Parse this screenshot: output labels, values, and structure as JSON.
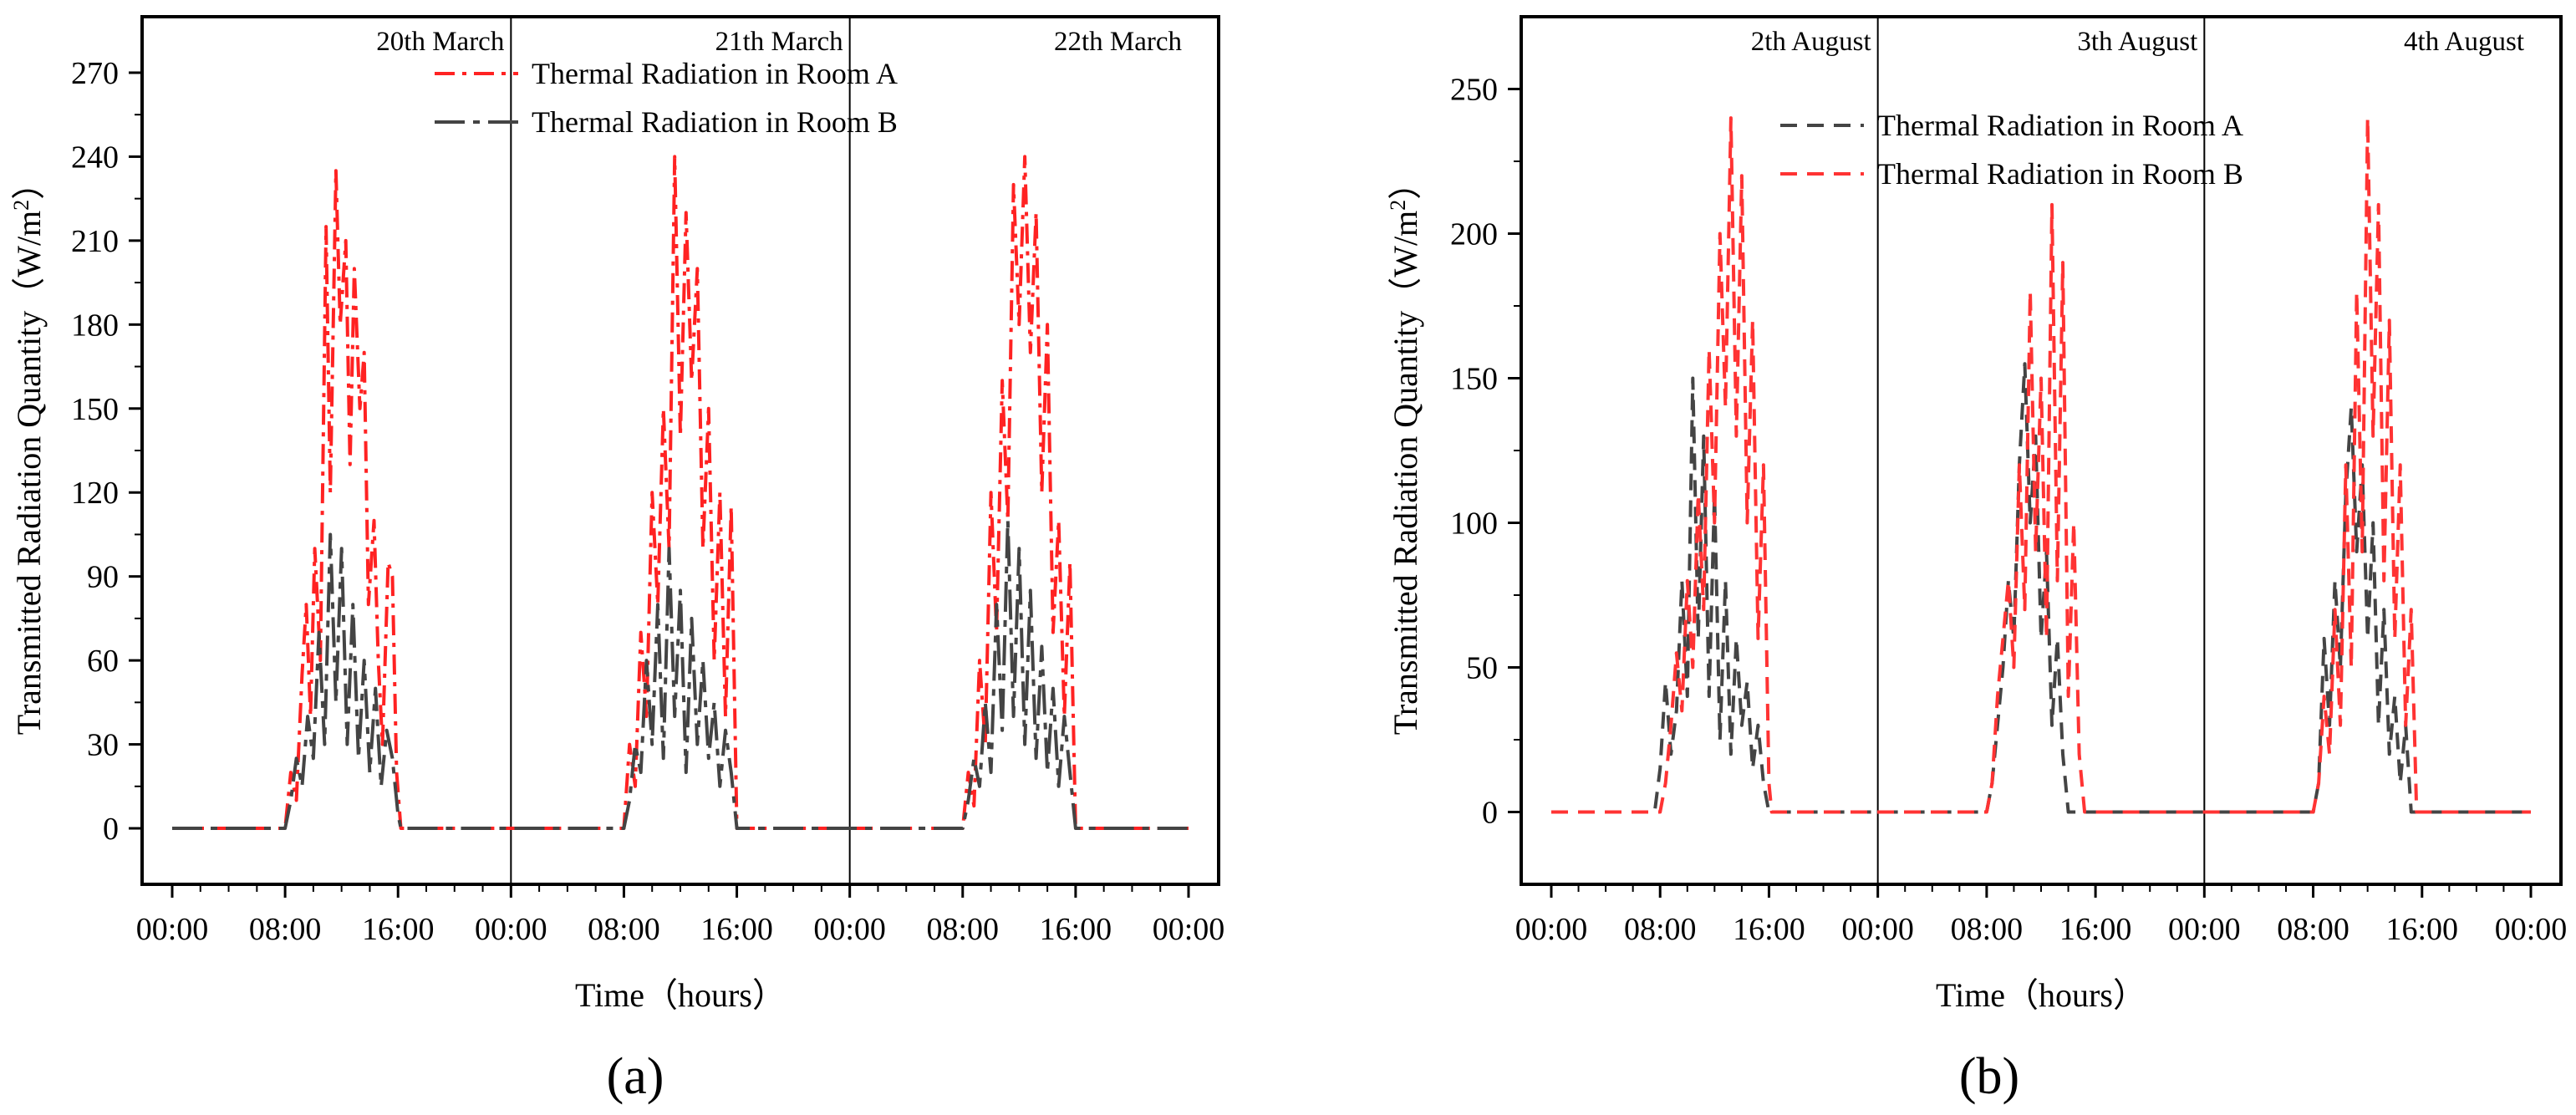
{
  "chart_data": [
    {
      "type": "line",
      "panel_label": "(a)",
      "xlabel": "Time（hours）",
      "ylabel": "Transmitted Radiation Quantity（W/m²）",
      "ylabel_main": "Transmitted Radiation Quantity（W/m",
      "ylabel_sup": "2",
      "ylabel_tail": "）",
      "xlim": [
        0,
        72
      ],
      "ylim": [
        -20,
        290
      ],
      "yticks": [
        0,
        30,
        60,
        90,
        120,
        150,
        180,
        210,
        240,
        270
      ],
      "xticks": [
        0,
        8,
        16,
        24,
        32,
        40,
        48,
        56,
        64,
        72
      ],
      "xtick_labels": [
        "00:00",
        "08:00",
        "16:00",
        "00:00",
        "08:00",
        "16:00",
        "00:00",
        "08:00",
        "16:00",
        "00:00"
      ],
      "day_separators": [
        24,
        48
      ],
      "days": [
        {
          "label": "20th March",
          "x_end": 24
        },
        {
          "label": "21th March",
          "x_end": 48
        },
        {
          "label": "22th March",
          "x_end": 72
        }
      ],
      "legend_position": "top-center",
      "series": [
        {
          "name": "Thermal Radiation in Room A",
          "color": "#ff2222",
          "dash": "24,9,5,9",
          "points": [
            [
              0,
              0
            ],
            [
              8,
              0
            ],
            [
              8.4,
              20
            ],
            [
              8.8,
              10
            ],
            [
              9.2,
              55
            ],
            [
              9.5,
              80
            ],
            [
              9.8,
              40
            ],
            [
              10.1,
              100
            ],
            [
              10.5,
              60
            ],
            [
              10.9,
              215
            ],
            [
              11.2,
              120
            ],
            [
              11.6,
              235
            ],
            [
              11.9,
              180
            ],
            [
              12.3,
              210
            ],
            [
              12.6,
              130
            ],
            [
              12.9,
              200
            ],
            [
              13.3,
              150
            ],
            [
              13.6,
              170
            ],
            [
              13.9,
              80
            ],
            [
              14.3,
              110
            ],
            [
              14.6,
              60
            ],
            [
              14.9,
              30
            ],
            [
              15.3,
              95
            ],
            [
              15.6,
              90
            ],
            [
              15.9,
              20
            ],
            [
              16.2,
              0
            ],
            [
              32,
              0
            ],
            [
              32.4,
              30
            ],
            [
              32.8,
              15
            ],
            [
              33.2,
              70
            ],
            [
              33.6,
              40
            ],
            [
              34,
              120
            ],
            [
              34.4,
              80
            ],
            [
              34.8,
              150
            ],
            [
              35.2,
              100
            ],
            [
              35.6,
              240
            ],
            [
              36,
              140
            ],
            [
              36.4,
              220
            ],
            [
              36.8,
              160
            ],
            [
              37.2,
              200
            ],
            [
              37.6,
              100
            ],
            [
              38,
              150
            ],
            [
              38.4,
              60
            ],
            [
              38.8,
              120
            ],
            [
              39.2,
              40
            ],
            [
              39.6,
              115
            ],
            [
              40,
              0
            ],
            [
              56,
              0
            ],
            [
              56.4,
              20
            ],
            [
              56.8,
              8
            ],
            [
              57.2,
              60
            ],
            [
              57.6,
              30
            ],
            [
              58,
              120
            ],
            [
              58.4,
              70
            ],
            [
              58.8,
              160
            ],
            [
              59.2,
              110
            ],
            [
              59.6,
              230
            ],
            [
              60,
              180
            ],
            [
              60.4,
              240
            ],
            [
              60.8,
              170
            ],
            [
              61.2,
              220
            ],
            [
              61.6,
              120
            ],
            [
              62,
              180
            ],
            [
              62.4,
              70
            ],
            [
              62.8,
              110
            ],
            [
              63.2,
              40
            ],
            [
              63.6,
              95
            ],
            [
              64,
              0
            ],
            [
              72,
              0
            ]
          ]
        },
        {
          "name": "Thermal Radiation in Room B",
          "color": "#444444",
          "dash": "36,10,8,10",
          "points": [
            [
              0,
              0
            ],
            [
              8,
              0
            ],
            [
              8.4,
              10
            ],
            [
              8.8,
              25
            ],
            [
              9.2,
              15
            ],
            [
              9.6,
              40
            ],
            [
              10,
              25
            ],
            [
              10.4,
              70
            ],
            [
              10.8,
              30
            ],
            [
              11.2,
              105
            ],
            [
              11.6,
              45
            ],
            [
              12,
              100
            ],
            [
              12.4,
              30
            ],
            [
              12.8,
              80
            ],
            [
              13.2,
              25
            ],
            [
              13.6,
              60
            ],
            [
              14,
              20
            ],
            [
              14.4,
              50
            ],
            [
              14.8,
              15
            ],
            [
              15.2,
              35
            ],
            [
              15.6,
              25
            ],
            [
              16,
              5
            ],
            [
              16.2,
              0
            ],
            [
              32,
              0
            ],
            [
              32.4,
              10
            ],
            [
              32.8,
              30
            ],
            [
              33.2,
              20
            ],
            [
              33.6,
              60
            ],
            [
              34,
              30
            ],
            [
              34.4,
              80
            ],
            [
              34.8,
              25
            ],
            [
              35.2,
              100
            ],
            [
              35.6,
              40
            ],
            [
              36,
              85
            ],
            [
              36.4,
              20
            ],
            [
              36.8,
              75
            ],
            [
              37.2,
              30
            ],
            [
              37.6,
              60
            ],
            [
              38,
              25
            ],
            [
              38.4,
              45
            ],
            [
              38.8,
              15
            ],
            [
              39.2,
              35
            ],
            [
              39.6,
              20
            ],
            [
              40,
              0
            ],
            [
              56,
              0
            ],
            [
              56.4,
              10
            ],
            [
              56.8,
              25
            ],
            [
              57.2,
              15
            ],
            [
              57.6,
              45
            ],
            [
              58,
              20
            ],
            [
              58.4,
              80
            ],
            [
              58.8,
              35
            ],
            [
              59.2,
              110
            ],
            [
              59.6,
              40
            ],
            [
              60,
              100
            ],
            [
              60.4,
              30
            ],
            [
              60.8,
              85
            ],
            [
              61.2,
              25
            ],
            [
              61.6,
              65
            ],
            [
              62,
              20
            ],
            [
              62.4,
              50
            ],
            [
              62.8,
              15
            ],
            [
              63.2,
              40
            ],
            [
              63.6,
              20
            ],
            [
              64,
              0
            ],
            [
              72,
              0
            ]
          ]
        }
      ]
    },
    {
      "type": "line",
      "panel_label": "(b)",
      "xlabel": "Time（hours）",
      "ylabel": "Transmitted Radiation Quantity（W/m²）",
      "ylabel_main": "Transmitted Radiation Quantity（W/m",
      "ylabel_sup": "2",
      "ylabel_tail": "）",
      "xlim": [
        0,
        72
      ],
      "ylim": [
        -25,
        275
      ],
      "yticks": [
        0,
        50,
        100,
        150,
        200,
        250
      ],
      "xticks": [
        0,
        8,
        16,
        24,
        32,
        40,
        48,
        56,
        64,
        72
      ],
      "xtick_labels": [
        "00:00",
        "08:00",
        "16:00",
        "00:00",
        "08:00",
        "16:00",
        "00:00",
        "08:00",
        "16:00",
        "00:00"
      ],
      "day_separators": [
        24,
        48
      ],
      "days": [
        {
          "label": "2th August",
          "x_end": 24
        },
        {
          "label": "3th August",
          "x_end": 48
        },
        {
          "label": "4th August",
          "x_end": 72
        }
      ],
      "legend_position": "top-center",
      "series": [
        {
          "name": "Thermal Radiation in Room A",
          "color": "#444444",
          "dash": "20,12",
          "points": [
            [
              0,
              0
            ],
            [
              7.6,
              0
            ],
            [
              8,
              15
            ],
            [
              8.4,
              45
            ],
            [
              8.8,
              20
            ],
            [
              9.2,
              35
            ],
            [
              9.6,
              80
            ],
            [
              10,
              40
            ],
            [
              10.4,
              150
            ],
            [
              10.8,
              60
            ],
            [
              11.2,
              130
            ],
            [
              11.6,
              40
            ],
            [
              12,
              110
            ],
            [
              12.4,
              25
            ],
            [
              12.8,
              80
            ],
            [
              13.2,
              20
            ],
            [
              13.6,
              60
            ],
            [
              14,
              30
            ],
            [
              14.4,
              45
            ],
            [
              14.8,
              15
            ],
            [
              15.2,
              30
            ],
            [
              15.6,
              10
            ],
            [
              16,
              0
            ],
            [
              32,
              0
            ],
            [
              32.4,
              10
            ],
            [
              32.8,
              30
            ],
            [
              33.2,
              50
            ],
            [
              33.6,
              80
            ],
            [
              34,
              60
            ],
            [
              34.4,
              120
            ],
            [
              34.8,
              155
            ],
            [
              35.2,
              100
            ],
            [
              35.6,
              130
            ],
            [
              36,
              60
            ],
            [
              36.4,
              90
            ],
            [
              36.8,
              30
            ],
            [
              37.2,
              60
            ],
            [
              37.6,
              20
            ],
            [
              38,
              0
            ],
            [
              56,
              0
            ],
            [
              56.4,
              10
            ],
            [
              56.8,
              60
            ],
            [
              57.2,
              30
            ],
            [
              57.6,
              80
            ],
            [
              58,
              50
            ],
            [
              58.4,
              110
            ],
            [
              58.8,
              140
            ],
            [
              59.2,
              90
            ],
            [
              59.6,
              120
            ],
            [
              60,
              60
            ],
            [
              60.4,
              100
            ],
            [
              60.8,
              30
            ],
            [
              61.2,
              70
            ],
            [
              61.6,
              20
            ],
            [
              62,
              40
            ],
            [
              62.4,
              10
            ],
            [
              62.8,
              30
            ],
            [
              63.2,
              0
            ],
            [
              72,
              0
            ]
          ]
        },
        {
          "name": "Thermal Radiation in Room B",
          "color": "#ff3333",
          "dash": "20,12",
          "points": [
            [
              0,
              0
            ],
            [
              8,
              0
            ],
            [
              8.4,
              10
            ],
            [
              8.8,
              30
            ],
            [
              9.2,
              55
            ],
            [
              9.6,
              35
            ],
            [
              10,
              80
            ],
            [
              10.4,
              50
            ],
            [
              10.8,
              110
            ],
            [
              11.2,
              70
            ],
            [
              11.6,
              160
            ],
            [
              12,
              100
            ],
            [
              12.4,
              200
            ],
            [
              12.8,
              140
            ],
            [
              13.2,
              240
            ],
            [
              13.6,
              130
            ],
            [
              14,
              220
            ],
            [
              14.4,
              100
            ],
            [
              14.8,
              170
            ],
            [
              15.2,
              60
            ],
            [
              15.6,
              120
            ],
            [
              16,
              10
            ],
            [
              16.2,
              0
            ],
            [
              32,
              0
            ],
            [
              32.4,
              10
            ],
            [
              32.8,
              40
            ],
            [
              33.2,
              60
            ],
            [
              33.6,
              80
            ],
            [
              34,
              50
            ],
            [
              34.4,
              120
            ],
            [
              34.8,
              70
            ],
            [
              35.2,
              180
            ],
            [
              35.6,
              90
            ],
            [
              36,
              150
            ],
            [
              36.4,
              60
            ],
            [
              36.8,
              210
            ],
            [
              37.2,
              80
            ],
            [
              37.6,
              190
            ],
            [
              38,
              40
            ],
            [
              38.4,
              100
            ],
            [
              38.8,
              20
            ],
            [
              39.2,
              0
            ],
            [
              56,
              0
            ],
            [
              56.4,
              10
            ],
            [
              56.8,
              40
            ],
            [
              57.2,
              20
            ],
            [
              57.6,
              70
            ],
            [
              58,
              30
            ],
            [
              58.4,
              120
            ],
            [
              58.8,
              50
            ],
            [
              59.2,
              180
            ],
            [
              59.6,
              90
            ],
            [
              60,
              240
            ],
            [
              60.4,
              130
            ],
            [
              60.8,
              210
            ],
            [
              61.2,
              80
            ],
            [
              61.6,
              170
            ],
            [
              62,
              60
            ],
            [
              62.4,
              120
            ],
            [
              62.8,
              30
            ],
            [
              63.2,
              70
            ],
            [
              63.6,
              0
            ],
            [
              72,
              0
            ]
          ]
        }
      ]
    }
  ]
}
